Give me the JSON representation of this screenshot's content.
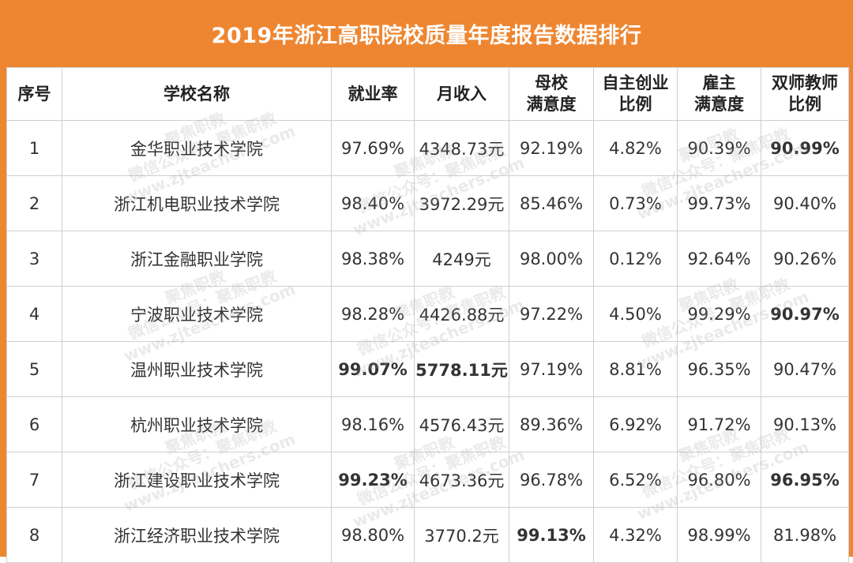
{
  "title": "2019年浙江高职院校质量年度报告数据排行",
  "columns": [
    {
      "key": "seq",
      "label": "序号"
    },
    {
      "key": "school",
      "label": "学校名称"
    },
    {
      "key": "employment",
      "label": "就业率"
    },
    {
      "key": "income",
      "label": "月收入"
    },
    {
      "key": "alma_mater",
      "label": "母校满意度"
    },
    {
      "key": "entrepreneurship",
      "label": "自主创业比例"
    },
    {
      "key": "employer",
      "label": "雇主满意度"
    },
    {
      "key": "dual_teacher",
      "label": "双师教师比例"
    }
  ],
  "rows": [
    {
      "seq": "1",
      "school": "金华职业技术学院",
      "employment": "97.69%",
      "income": "4348.73元",
      "alma_mater": "92.19%",
      "entrepreneurship": "4.82%",
      "employer": "90.39%",
      "dual_teacher": "90.99%",
      "highlight": [
        "dual_teacher"
      ]
    },
    {
      "seq": "2",
      "school": "浙江机电职业技术学院",
      "employment": "98.40%",
      "income": "3972.29元",
      "alma_mater": "85.46%",
      "entrepreneurship": "0.73%",
      "employer": "99.73%",
      "dual_teacher": "90.40%",
      "highlight": []
    },
    {
      "seq": "3",
      "school": "浙江金融职业学院",
      "employment": "98.38%",
      "income": "4249元",
      "alma_mater": "98.00%",
      "entrepreneurship": "0.12%",
      "employer": "92.64%",
      "dual_teacher": "90.26%",
      "highlight": []
    },
    {
      "seq": "4",
      "school": "宁波职业技术学院",
      "employment": "98.28%",
      "income": "4426.88元",
      "alma_mater": "97.22%",
      "entrepreneurship": "4.50%",
      "employer": "99.29%",
      "dual_teacher": "90.97%",
      "highlight": [
        "dual_teacher"
      ]
    },
    {
      "seq": "5",
      "school": "温州职业技术学院",
      "employment": "99.07%",
      "income": "5778.11元",
      "alma_mater": "97.19%",
      "entrepreneurship": "8.81%",
      "employer": "96.35%",
      "dual_teacher": "90.47%",
      "highlight": [
        "employment",
        "income"
      ]
    },
    {
      "seq": "6",
      "school": "杭州职业技术学院",
      "employment": "98.16%",
      "income": "4576.43元",
      "alma_mater": "89.36%",
      "entrepreneurship": "6.92%",
      "employer": "91.72%",
      "dual_teacher": "90.13%",
      "highlight": []
    },
    {
      "seq": "7",
      "school": "浙江建设职业技术学院",
      "employment": "99.23%",
      "income": "4673.36元",
      "alma_mater": "96.78%",
      "entrepreneurship": "6.52%",
      "employer": "96.80%",
      "dual_teacher": "96.95%",
      "highlight": [
        "employment",
        "dual_teacher"
      ]
    },
    {
      "seq": "8",
      "school": "浙江经济职业技术学院",
      "employment": "98.80%",
      "income": "3770.2元",
      "alma_mater": "99.13%",
      "entrepreneurship": "4.32%",
      "employer": "98.99%",
      "dual_teacher": "81.98%",
      "highlight": [
        "alma_mater"
      ]
    }
  ],
  "colors": {
    "frame": "#ee8631",
    "highlight": "#ff0000",
    "grid": "#cfcfcf"
  },
  "watermark": {
    "line1": "聚焦职教",
    "line2": "微信公众号：聚焦职教",
    "line3": "www.zjteachers.com"
  }
}
